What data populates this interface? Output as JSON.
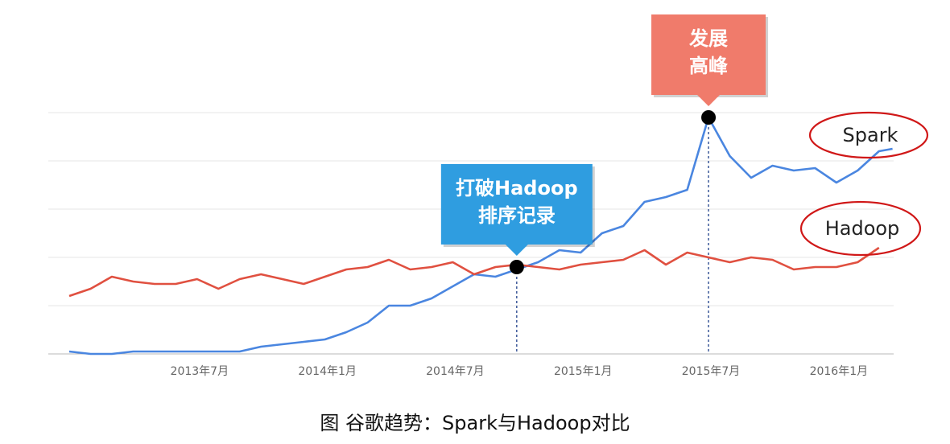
{
  "caption": "图 谷歌趋势：Spark与Hadoop对比",
  "chart_data": {
    "type": "line",
    "x_start": "2013-01",
    "x_end": "2016-03",
    "x_ticks": [
      "2013年7月",
      "2014年1月",
      "2014年7月",
      "2015年1月",
      "2015年7月",
      "2016年1月"
    ],
    "ylim": [
      0,
      100
    ],
    "grid": true,
    "series": [
      {
        "name": "Spark",
        "color": "#4a86e0",
        "points": [
          [
            "2013-01",
            1
          ],
          [
            "2013-02",
            0
          ],
          [
            "2013-03",
            0
          ],
          [
            "2013-04",
            1
          ],
          [
            "2013-05",
            1
          ],
          [
            "2013-06",
            1
          ],
          [
            "2013-07",
            1
          ],
          [
            "2013-08",
            1
          ],
          [
            "2013-09",
            1
          ],
          [
            "2013-10",
            3
          ],
          [
            "2013-11",
            4
          ],
          [
            "2013-12",
            5
          ],
          [
            "2014-01",
            6
          ],
          [
            "2014-02",
            9
          ],
          [
            "2014-03",
            13
          ],
          [
            "2014-04",
            20
          ],
          [
            "2014-05",
            20
          ],
          [
            "2014-06",
            23
          ],
          [
            "2014-07",
            28
          ],
          [
            "2014-08",
            33
          ],
          [
            "2014-09",
            32
          ],
          [
            "2014-10",
            35
          ],
          [
            "2014-11",
            38
          ],
          [
            "2014-12",
            43
          ],
          [
            "2015-01",
            42
          ],
          [
            "2015-02",
            50
          ],
          [
            "2015-03",
            53
          ],
          [
            "2015-04",
            63
          ],
          [
            "2015-05",
            65
          ],
          [
            "2015-06",
            68
          ],
          [
            "2015-07",
            98
          ],
          [
            "2015-08",
            82
          ],
          [
            "2015-09",
            73
          ],
          [
            "2015-10",
            78
          ],
          [
            "2015-11",
            76
          ],
          [
            "2015-12",
            77
          ],
          [
            "2016-01",
            71
          ],
          [
            "2016-02",
            76
          ],
          [
            "2016-03",
            84
          ],
          [
            "2016-03-20",
            85
          ]
        ]
      },
      {
        "name": "Hadoop",
        "color": "#e05040",
        "points": [
          [
            "2013-01",
            24
          ],
          [
            "2013-02",
            27
          ],
          [
            "2013-03",
            32
          ],
          [
            "2013-04",
            30
          ],
          [
            "2013-05",
            29
          ],
          [
            "2013-06",
            29
          ],
          [
            "2013-07",
            31
          ],
          [
            "2013-08",
            27
          ],
          [
            "2013-09",
            31
          ],
          [
            "2013-10",
            33
          ],
          [
            "2013-11",
            31
          ],
          [
            "2013-12",
            29
          ],
          [
            "2014-01",
            32
          ],
          [
            "2014-02",
            35
          ],
          [
            "2014-03",
            36
          ],
          [
            "2014-04",
            39
          ],
          [
            "2014-05",
            35
          ],
          [
            "2014-06",
            36
          ],
          [
            "2014-07",
            38
          ],
          [
            "2014-08",
            33
          ],
          [
            "2014-09",
            36
          ],
          [
            "2014-10",
            37
          ],
          [
            "2014-11",
            36
          ],
          [
            "2014-12",
            35
          ],
          [
            "2015-01",
            37
          ],
          [
            "2015-02",
            38
          ],
          [
            "2015-03",
            39
          ],
          [
            "2015-04",
            43
          ],
          [
            "2015-05",
            37
          ],
          [
            "2015-06",
            42
          ],
          [
            "2015-07",
            40
          ],
          [
            "2015-08",
            38
          ],
          [
            "2015-09",
            40
          ],
          [
            "2015-10",
            39
          ],
          [
            "2015-11",
            35
          ],
          [
            "2015-12",
            36
          ],
          [
            "2016-01",
            36
          ],
          [
            "2016-02",
            38
          ],
          [
            "2016-03",
            44
          ]
        ]
      }
    ],
    "annotations": [
      {
        "text": [
          "打破Hadoop",
          "排序记录"
        ],
        "date": "2014-10",
        "value": 36,
        "color": "#2f9de0"
      },
      {
        "text": [
          "发展",
          "高峰"
        ],
        "date": "2015-07",
        "value": 98,
        "color": "#f07b6b"
      }
    ],
    "legend_labels": {
      "spark": "Spark",
      "hadoop": "Hadoop"
    }
  }
}
